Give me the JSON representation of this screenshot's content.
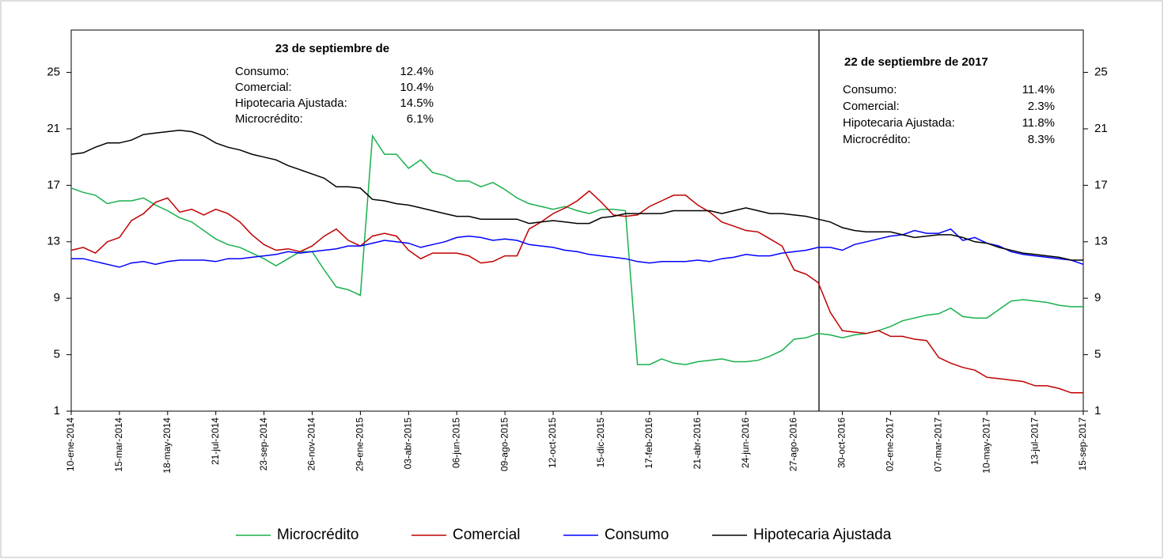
{
  "chart_data": {
    "type": "line",
    "categories": [
      "10-ene-2014",
      null,
      null,
      null,
      "15-mar-2014",
      null,
      null,
      null,
      "18-may-2014",
      null,
      null,
      null,
      "21-jul-2014",
      null,
      null,
      null,
      "23-sep-2014",
      null,
      null,
      null,
      "26-nov-2014",
      null,
      null,
      null,
      "29-ene-2015",
      null,
      null,
      null,
      "03-abr-2015",
      null,
      null,
      null,
      "06-jun-2015",
      null,
      null,
      null,
      "09-ago-2015",
      null,
      null,
      null,
      "12-oct-2015",
      null,
      null,
      null,
      "15-dic-2015",
      null,
      null,
      null,
      "17-feb-2016",
      null,
      null,
      null,
      "21-abr-2016",
      null,
      null,
      null,
      "24-jun-2016",
      null,
      null,
      null,
      "27-ago-2016",
      null,
      null,
      null,
      "30-oct-2016",
      null,
      null,
      null,
      "02-ene-2017",
      null,
      null,
      null,
      "07-mar-2017",
      null,
      null,
      null,
      "10-may-2017",
      null,
      null,
      null,
      "13-jul-2017",
      null,
      null,
      null,
      "15-sep-2017"
    ],
    "series": [
      {
        "name": "Microcrédito",
        "color": "#18b04c",
        "values": [
          16.8,
          16.5,
          16.3,
          15.7,
          15.9,
          15.9,
          16.1,
          15.6,
          15.2,
          14.7,
          14.4,
          13.8,
          13.2,
          12.8,
          12.6,
          12.2,
          11.8,
          11.3,
          11.8,
          12.3,
          12.3,
          11.0,
          9.8,
          9.6,
          9.2,
          20.5,
          19.2,
          19.2,
          18.2,
          18.8,
          17.9,
          17.7,
          17.3,
          17.3,
          16.9,
          17.2,
          16.7,
          16.1,
          15.7,
          15.5,
          15.3,
          15.5,
          15.2,
          15.0,
          15.3,
          15.3,
          15.2,
          4.3,
          4.3,
          4.7,
          4.4,
          4.3,
          4.5,
          4.6,
          4.7,
          4.5,
          4.5,
          4.6,
          4.9,
          5.3,
          6.1,
          6.2,
          6.5,
          6.4,
          6.2,
          6.4,
          6.5,
          6.7,
          7.0,
          7.4,
          7.6,
          7.8,
          7.9,
          8.3,
          7.7,
          7.6,
          7.6,
          8.2,
          8.8,
          8.9,
          8.8,
          8.7,
          8.5,
          8.4,
          8.4
        ]
      },
      {
        "name": "Comercial",
        "color": "#c00000",
        "values": [
          12.4,
          12.6,
          12.2,
          13.0,
          13.3,
          14.5,
          15.0,
          15.8,
          16.1,
          15.1,
          15.3,
          14.9,
          15.3,
          15.0,
          14.4,
          13.5,
          12.8,
          12.4,
          12.5,
          12.3,
          12.7,
          13.4,
          13.9,
          13.1,
          12.7,
          13.4,
          13.6,
          13.4,
          12.4,
          11.8,
          12.2,
          12.2,
          12.2,
          12.0,
          11.5,
          11.6,
          12.0,
          12.0,
          13.9,
          14.4,
          15.0,
          15.4,
          15.9,
          16.6,
          15.8,
          14.9,
          14.8,
          14.9,
          15.5,
          15.9,
          16.3,
          16.3,
          15.6,
          15.1,
          14.4,
          14.1,
          13.8,
          13.7,
          13.2,
          12.7,
          11.0,
          10.7,
          10.1,
          8.0,
          6.7,
          6.6,
          6.5,
          6.7,
          6.3,
          6.3,
          6.1,
          6.0,
          4.8,
          4.4,
          4.1,
          3.9,
          3.4,
          3.3,
          3.2,
          3.1,
          2.8,
          2.8,
          2.6,
          2.3,
          2.3
        ]
      },
      {
        "name": "Consumo",
        "color": "#0000ff",
        "values": [
          11.8,
          11.8,
          11.6,
          11.4,
          11.2,
          11.5,
          11.6,
          11.4,
          11.6,
          11.7,
          11.7,
          11.7,
          11.6,
          11.8,
          11.8,
          11.9,
          12.0,
          12.1,
          12.3,
          12.2,
          12.3,
          12.4,
          12.5,
          12.7,
          12.7,
          12.9,
          13.1,
          13.0,
          12.9,
          12.6,
          12.8,
          13.0,
          13.3,
          13.4,
          13.3,
          13.1,
          13.2,
          13.1,
          12.8,
          12.7,
          12.6,
          12.4,
          12.3,
          12.1,
          12.0,
          11.9,
          11.8,
          11.6,
          11.5,
          11.6,
          11.6,
          11.6,
          11.7,
          11.6,
          11.8,
          11.9,
          12.1,
          12.0,
          12.0,
          12.2,
          12.3,
          12.4,
          12.6,
          12.6,
          12.4,
          12.8,
          13.0,
          13.2,
          13.4,
          13.5,
          13.8,
          13.6,
          13.6,
          13.9,
          13.1,
          13.3,
          12.9,
          12.7,
          12.3,
          12.1,
          12.0,
          11.9,
          11.8,
          11.7,
          11.4
        ]
      },
      {
        "name": "Hipotecaria Ajustada",
        "color": "#000000",
        "values": [
          19.2,
          19.3,
          19.7,
          20.0,
          20.0,
          20.2,
          20.6,
          20.7,
          20.8,
          20.9,
          20.8,
          20.5,
          20.0,
          19.7,
          19.5,
          19.2,
          19.0,
          18.8,
          18.4,
          18.1,
          17.8,
          17.5,
          16.9,
          16.9,
          16.8,
          16.0,
          15.9,
          15.7,
          15.6,
          15.4,
          15.2,
          15.0,
          14.8,
          14.8,
          14.6,
          14.6,
          14.6,
          14.6,
          14.3,
          14.4,
          14.5,
          14.4,
          14.3,
          14.3,
          14.7,
          14.8,
          15.0,
          15.0,
          15.0,
          15.0,
          15.2,
          15.2,
          15.2,
          15.2,
          15.0,
          15.2,
          15.4,
          15.2,
          15.0,
          15.0,
          14.9,
          14.8,
          14.6,
          14.4,
          14.0,
          13.8,
          13.7,
          13.7,
          13.7,
          13.5,
          13.3,
          13.4,
          13.5,
          13.5,
          13.3,
          13.0,
          12.9,
          12.6,
          12.4,
          12.2,
          12.1,
          12.0,
          11.9,
          11.7,
          11.7
        ]
      }
    ],
    "ylim": [
      1,
      28
    ],
    "yticks": [
      1,
      5,
      9,
      13,
      17,
      21,
      25
    ],
    "annotations": [
      {
        "title": "23 de septiembre de",
        "rows": [
          {
            "label": "Consumo:",
            "value": "12.4%"
          },
          {
            "label": "Comercial:",
            "value": "10.4%"
          },
          {
            "label": "Hipotecaria Ajustada:",
            "value": "14.5%"
          },
          {
            "label": "Microcrédito:",
            "value": "6.1%"
          }
        ]
      },
      {
        "title": "22 de septiembre de 2017",
        "rows": [
          {
            "label": "Consumo:",
            "value": "11.4%"
          },
          {
            "label": "Comercial:",
            "value": "2.3%"
          },
          {
            "label": "Hipotecaria Ajustada:",
            "value": "11.8%"
          },
          {
            "label": "Microcrédito:",
            "value": "8.3%"
          }
        ]
      }
    ],
    "legend": "bottom"
  }
}
